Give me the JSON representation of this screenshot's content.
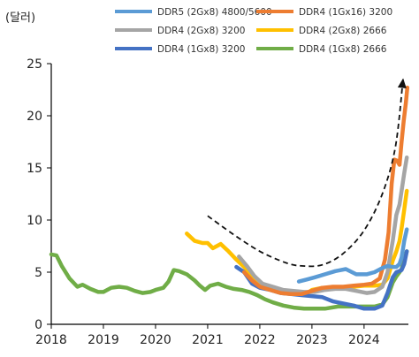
{
  "chart_data": {
    "type": "line",
    "unit_label": "(달러)",
    "title": "",
    "xlabel": "",
    "ylabel": "",
    "xlim": [
      2018,
      2024.85
    ],
    "ylim": [
      0,
      25
    ],
    "x_ticks": [
      2018,
      2019,
      2020,
      2021,
      2022,
      2023,
      2024
    ],
    "x_tick_labels": [
      "2018",
      "2019",
      "2020",
      "2021",
      "2022",
      "2023",
      "2024"
    ],
    "y_ticks": [
      0,
      5,
      10,
      15,
      20,
      25
    ],
    "y_tick_labels": [
      "0",
      "5",
      "10",
      "15",
      "20",
      "25"
    ],
    "grid": false,
    "legend_position": "top",
    "series": [
      {
        "name": "DDR4 (1Gx8) 2666",
        "color": "#70ad47",
        "x": [
          2018.0,
          2018.1,
          2018.2,
          2018.35,
          2018.5,
          2018.6,
          2018.75,
          2018.9,
          2019.0,
          2019.15,
          2019.3,
          2019.45,
          2019.6,
          2019.75,
          2019.9,
          2020.0,
          2020.15,
          2020.25,
          2020.35,
          2020.45,
          2020.6,
          2020.75,
          2020.85,
          2020.95,
          2021.05,
          2021.2,
          2021.35,
          2021.5,
          2021.65,
          2021.8,
          2021.95,
          2022.1,
          2022.25,
          2022.45,
          2022.65,
          2022.85,
          2023.0,
          2023.25,
          2023.5,
          2023.75,
          2024.0,
          2024.2,
          2024.35,
          2024.45,
          2024.55,
          2024.62,
          2024.68,
          2024.72,
          2024.77,
          2024.82
        ],
        "values": [
          6.7,
          6.6,
          5.6,
          4.4,
          3.6,
          3.8,
          3.4,
          3.1,
          3.1,
          3.5,
          3.6,
          3.5,
          3.2,
          3.0,
          3.1,
          3.3,
          3.5,
          4.1,
          5.2,
          5.1,
          4.8,
          4.2,
          3.7,
          3.3,
          3.7,
          3.9,
          3.6,
          3.4,
          3.3,
          3.1,
          2.8,
          2.4,
          2.1,
          1.8,
          1.6,
          1.5,
          1.5,
          1.5,
          1.7,
          1.7,
          1.7,
          1.7,
          1.9,
          2.6,
          4.0,
          4.6,
          5.0,
          5.3,
          6.3,
          7.0
        ]
      },
      {
        "name": "DDR4 (2Gx8) 2666",
        "color": "#ffc000",
        "x": [
          2020.6,
          2020.75,
          2020.9,
          2021.0,
          2021.1,
          2021.25,
          2021.4,
          2021.55,
          2021.7,
          2021.85,
          2022.0,
          2022.15,
          2022.3,
          2022.5,
          2022.7,
          2022.85,
          2023.0,
          2023.2,
          2023.4,
          2023.6,
          2023.8,
          2024.0,
          2024.2,
          2024.35,
          2024.45,
          2024.55,
          2024.62,
          2024.68,
          2024.72,
          2024.77,
          2024.82
        ],
        "values": [
          8.7,
          8.0,
          7.8,
          7.8,
          7.3,
          7.7,
          7.0,
          6.2,
          5.5,
          4.6,
          3.8,
          3.4,
          3.2,
          3.0,
          2.9,
          2.8,
          3.3,
          3.5,
          3.5,
          3.5,
          3.6,
          3.7,
          3.7,
          3.8,
          4.4,
          6.1,
          7.0,
          8.0,
          9.2,
          11.0,
          12.8
        ]
      },
      {
        "name": "DDR4 (1Gx8) 3200",
        "color": "#4472c4",
        "x": [
          2021.55,
          2021.7,
          2021.85,
          2022.0,
          2022.2,
          2022.4,
          2022.6,
          2022.8,
          2023.0,
          2023.2,
          2023.4,
          2023.6,
          2023.8,
          2024.0,
          2024.2,
          2024.35,
          2024.45,
          2024.55,
          2024.62,
          2024.68,
          2024.72,
          2024.77,
          2024.82
        ],
        "values": [
          5.5,
          5.0,
          3.9,
          3.5,
          3.3,
          3.0,
          2.9,
          2.8,
          2.7,
          2.6,
          2.2,
          2.0,
          1.8,
          1.5,
          1.5,
          1.8,
          3.0,
          4.5,
          5.0,
          5.1,
          5.2,
          5.8,
          7.0
        ]
      },
      {
        "name": "DDR4 (2Gx8) 3200",
        "color": "#a5a5a5",
        "x": [
          2021.6,
          2021.75,
          2021.9,
          2022.05,
          2022.25,
          2022.45,
          2022.65,
          2022.85,
          2023.05,
          2023.25,
          2023.45,
          2023.65,
          2023.85,
          2024.05,
          2024.2,
          2024.35,
          2024.45,
          2024.55,
          2024.62,
          2024.68,
          2024.72,
          2024.77,
          2024.82
        ],
        "values": [
          6.5,
          5.6,
          4.6,
          3.9,
          3.6,
          3.3,
          3.2,
          3.1,
          3.1,
          3.3,
          3.4,
          3.4,
          3.2,
          3.0,
          3.1,
          3.6,
          5.0,
          8.0,
          10.5,
          11.5,
          12.8,
          14.5,
          16.0
        ]
      },
      {
        "name": "DDR4 (1Gx16) 3200",
        "color": "#ed7d31",
        "x": [
          2021.7,
          2021.85,
          2022.0,
          2022.2,
          2022.4,
          2022.6,
          2022.8,
          2023.0,
          2023.2,
          2023.4,
          2023.6,
          2023.8,
          2024.0,
          2024.15,
          2024.3,
          2024.4,
          2024.47,
          2024.53,
          2024.58,
          2024.63,
          2024.68,
          2024.72,
          2024.76,
          2024.8,
          2024.83
        ],
        "values": [
          5.0,
          4.2,
          3.6,
          3.3,
          3.0,
          2.9,
          2.9,
          3.2,
          3.5,
          3.6,
          3.6,
          3.7,
          3.8,
          3.9,
          4.4,
          6.2,
          8.8,
          13.5,
          15.8,
          15.7,
          15.3,
          17.5,
          19.5,
          21.2,
          22.7
        ]
      },
      {
        "name": "DDR5 (2Gx8) 4800/5600",
        "color": "#5b9bd5",
        "x": [
          2022.75,
          2022.9,
          2023.05,
          2023.25,
          2023.45,
          2023.65,
          2023.85,
          2024.05,
          2024.2,
          2024.35,
          2024.45,
          2024.55,
          2024.62,
          2024.68,
          2024.72,
          2024.77,
          2024.82
        ],
        "values": [
          4.1,
          4.3,
          4.5,
          4.8,
          5.1,
          5.3,
          4.8,
          4.8,
          5.0,
          5.4,
          5.6,
          5.5,
          5.5,
          5.8,
          6.4,
          8.0,
          9.1
        ]
      }
    ],
    "trend_arrow": {
      "style": "dashed",
      "x": [
        2021.0,
        2021.5,
        2022.0,
        2022.5,
        2022.8,
        2023.2,
        2023.6,
        2024.0,
        2024.35,
        2024.6,
        2024.75
      ],
      "values": [
        10.4,
        8.6,
        7.0,
        5.9,
        5.6,
        5.7,
        6.8,
        9.0,
        12.5,
        17.0,
        23.6
      ]
    },
    "legend": [
      {
        "label": "DDR5 (2Gx8) 4800/5600",
        "color": "#5b9bd5"
      },
      {
        "label": "DDR4 (1Gx16) 3200",
        "color": "#ed7d31"
      },
      {
        "label": "DDR4 (2Gx8) 3200",
        "color": "#a5a5a5"
      },
      {
        "label": "DDR4 (2Gx8) 2666",
        "color": "#ffc000"
      },
      {
        "label": "DDR4 (1Gx8) 3200",
        "color": "#4472c4"
      },
      {
        "label": "DDR4 (1Gx8) 2666",
        "color": "#70ad47"
      }
    ]
  }
}
